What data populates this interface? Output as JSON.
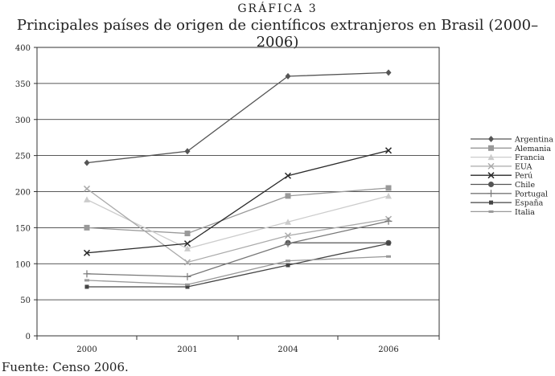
{
  "header": {
    "kicker": "GRÁFICA 3",
    "title": "Principales países de origen de científicos extranjeros en Brasil (2000–2006)"
  },
  "footer": {
    "source": "Fuente: Censo 2006."
  },
  "chart_data": {
    "type": "line",
    "title": "Principales países de origen de científicos extranjeros en Brasil (2000–2006)",
    "xlabel": "",
    "ylabel": "",
    "categories": [
      "2000",
      "2001",
      "2004",
      "2006"
    ],
    "ylim": [
      0,
      400
    ],
    "yticks": [
      0,
      50,
      100,
      150,
      200,
      250,
      300,
      350,
      400
    ],
    "grid": "horizontal",
    "legend": "right",
    "series": [
      {
        "name": "Argentina",
        "values": [
          240,
          256,
          360,
          365
        ],
        "color": "#555555",
        "marker": "diamond"
      },
      {
        "name": "Alemania",
        "values": [
          150,
          142,
          194,
          205
        ],
        "color": "#999999",
        "marker": "square"
      },
      {
        "name": "Francia",
        "values": [
          189,
          121,
          158,
          194
        ],
        "color": "#cccccc",
        "marker": "triangle"
      },
      {
        "name": "EUA",
        "values": [
          204,
          102,
          139,
          162
        ],
        "color": "#aaaaaa",
        "marker": "x"
      },
      {
        "name": "Perú",
        "values": [
          115,
          128,
          222,
          257
        ],
        "color": "#2a2a2a",
        "marker": "x"
      },
      {
        "name": "Chile",
        "values": [
          null,
          null,
          129,
          129
        ],
        "color": "#555555",
        "marker": "circle"
      },
      {
        "name": "Portugal",
        "values": [
          86,
          82,
          128,
          159
        ],
        "color": "#777777",
        "marker": "plus"
      },
      {
        "name": "España",
        "values": [
          68,
          68,
          98,
          128
        ],
        "color": "#444444",
        "marker": "smallsquare"
      },
      {
        "name": "Italia",
        "values": [
          77,
          71,
          104,
          110
        ],
        "color": "#999999",
        "marker": "dash"
      }
    ]
  }
}
